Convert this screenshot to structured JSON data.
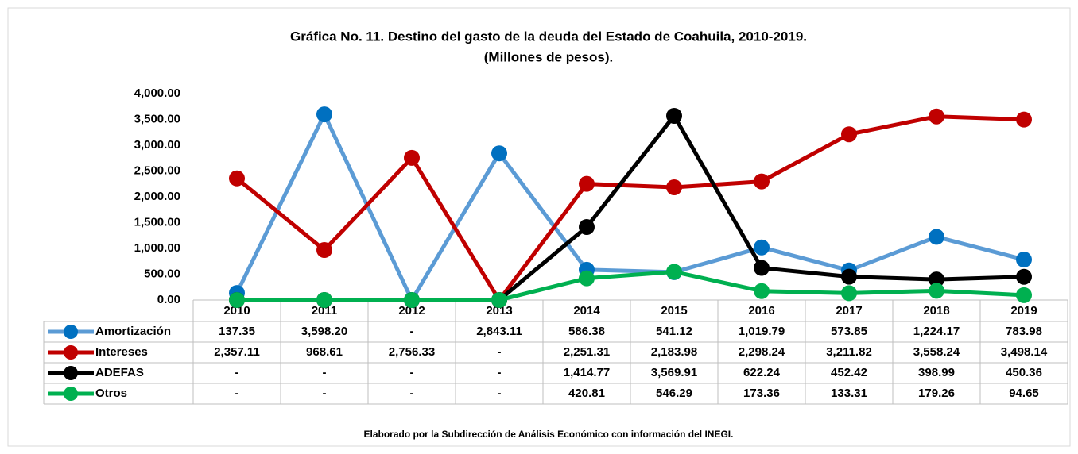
{
  "chart_data": {
    "type": "line",
    "title": "Gráfica No. 11. Destino del gasto de la deuda del Estado de Coahuila, 2010-2019.",
    "subtitle": "(Millones de pesos).",
    "footer": "Elaborado por la Subdirección de Análisis Económico con información del INEGI.",
    "categories": [
      "2010",
      "2011",
      "2012",
      "2013",
      "2014",
      "2015",
      "2016",
      "2017",
      "2018",
      "2019"
    ],
    "ylim": [
      0,
      4000
    ],
    "yticks": [
      {
        "value": 0,
        "label": "0.00"
      },
      {
        "value": 500,
        "label": "500.00"
      },
      {
        "value": 1000,
        "label": "1,000.00"
      },
      {
        "value": 1500,
        "label": "1,500.00"
      },
      {
        "value": 2000,
        "label": "2,000.00"
      },
      {
        "value": 2500,
        "label": "2,500.00"
      },
      {
        "value": 3000,
        "label": "3,000.00"
      },
      {
        "value": 3500,
        "label": "3,500.00"
      },
      {
        "value": 4000,
        "label": "4,000.00"
      }
    ],
    "grid": false,
    "series": [
      {
        "name": "Amortización",
        "color": "#5b9bd5",
        "marker_color": "#0070c0",
        "values": [
          137.35,
          3598.2,
          0,
          2843.11,
          586.38,
          541.12,
          1019.79,
          573.85,
          1224.17,
          783.98
        ],
        "value_labels": [
          "137.35",
          "3,598.20",
          "-",
          "2,843.11",
          "586.38",
          "541.12",
          "1,019.79",
          "573.85",
          "1,224.17",
          "783.98"
        ]
      },
      {
        "name": "Intereses",
        "color": "#c00000",
        "marker_color": "#c00000",
        "values": [
          2357.11,
          968.61,
          2756.33,
          0,
          2251.31,
          2183.98,
          2298.24,
          3211.82,
          3558.24,
          3498.14
        ],
        "value_labels": [
          "2,357.11",
          "968.61",
          "2,756.33",
          "-",
          "2,251.31",
          "2,183.98",
          "2,298.24",
          "3,211.82",
          "3,558.24",
          "3,498.14"
        ]
      },
      {
        "name": "ADEFAS",
        "color": "#000000",
        "marker_color": "#000000",
        "values": [
          0,
          0,
          0,
          0,
          1414.77,
          3569.91,
          622.24,
          452.42,
          398.99,
          450.36
        ],
        "value_labels": [
          "-",
          "-",
          "-",
          "-",
          "1,414.77",
          "3,569.91",
          "622.24",
          "452.42",
          "398.99",
          "450.36"
        ]
      },
      {
        "name": "Otros",
        "color": "#00b050",
        "marker_color": "#00b050",
        "values": [
          0,
          0,
          0,
          0,
          420.81,
          546.29,
          173.36,
          133.31,
          179.26,
          94.65
        ],
        "value_labels": [
          "-",
          "-",
          "-",
          "-",
          "420.81",
          "546.29",
          "173.36",
          "133.31",
          "179.26",
          "94.65"
        ]
      }
    ]
  }
}
